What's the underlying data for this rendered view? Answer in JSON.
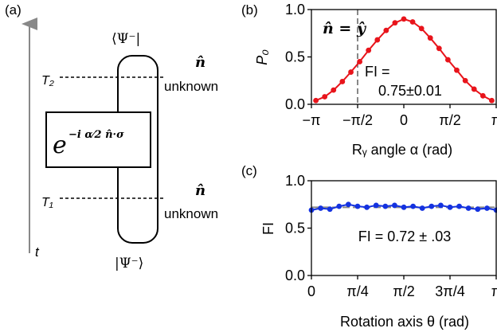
{
  "panel_a": {
    "label": "(a)",
    "time_label": "t",
    "top_state": "⟨Ψ⁻|",
    "bottom_state": "|Ψ⁻⟩",
    "t2_label": "T₂",
    "t1_label": "T₁",
    "n_hat": "n̂",
    "unknown_top": "unknown",
    "unknown_bottom": "unknown",
    "gate_text": "e",
    "gate_exponent": "−i α⁄2 n̂·σ"
  },
  "chart_data": [
    {
      "panel": "(b)",
      "type": "line",
      "ylabel": "P₀",
      "xlabel": "Rᵧ angle α (rad)",
      "x_tick_labels": [
        "−π",
        "−π/2",
        "0",
        "π/2",
        "π"
      ],
      "y_tick_labels": [
        "0.0",
        "0.5",
        "1.0"
      ],
      "xlim": [
        -3.1416,
        3.1416
      ],
      "ylim": [
        0,
        1
      ],
      "annotation_line_label": "n̂ = ŷ",
      "annotation_line_x": -1.5708,
      "fi_label": "FI =",
      "fi_value": "0.75±0.01",
      "series": [
        {
          "color": "#e8141b",
          "x": [
            -2.99,
            -2.69,
            -2.39,
            -2.09,
            -1.8,
            -1.5,
            -1.2,
            -0.9,
            -0.6,
            -0.3,
            0.0,
            0.3,
            0.6,
            0.9,
            1.2,
            1.5,
            1.8,
            2.09,
            2.39,
            2.69,
            2.99
          ],
          "y": [
            0.04,
            0.08,
            0.15,
            0.24,
            0.34,
            0.45,
            0.57,
            0.68,
            0.78,
            0.86,
            0.9,
            0.87,
            0.8,
            0.7,
            0.59,
            0.47,
            0.36,
            0.25,
            0.16,
            0.09,
            0.04
          ]
        }
      ]
    },
    {
      "panel": "(c)",
      "type": "line",
      "ylabel": "FI",
      "xlabel": "Rotation axis θ (rad)",
      "x_tick_labels": [
        "0",
        "π/4",
        "π/2",
        "3π/4",
        "π"
      ],
      "y_tick_labels": [
        "0.0",
        "0.5",
        "1.0"
      ],
      "xlim": [
        0,
        3.1416
      ],
      "ylim": [
        0,
        1
      ],
      "reference_value": 0.72,
      "fi_text": "FI = 0.72 ± .03",
      "series": [
        {
          "color": "#1432e0",
          "x": [
            0.0,
            0.157,
            0.314,
            0.471,
            0.628,
            0.785,
            0.942,
            1.1,
            1.257,
            1.414,
            1.571,
            1.728,
            1.885,
            2.042,
            2.199,
            2.356,
            2.513,
            2.67,
            2.827,
            2.985,
            3.142
          ],
          "y": [
            0.69,
            0.71,
            0.7,
            0.73,
            0.75,
            0.73,
            0.72,
            0.74,
            0.73,
            0.74,
            0.72,
            0.73,
            0.71,
            0.73,
            0.74,
            0.72,
            0.73,
            0.71,
            0.7,
            0.71,
            0.69
          ]
        }
      ]
    }
  ]
}
